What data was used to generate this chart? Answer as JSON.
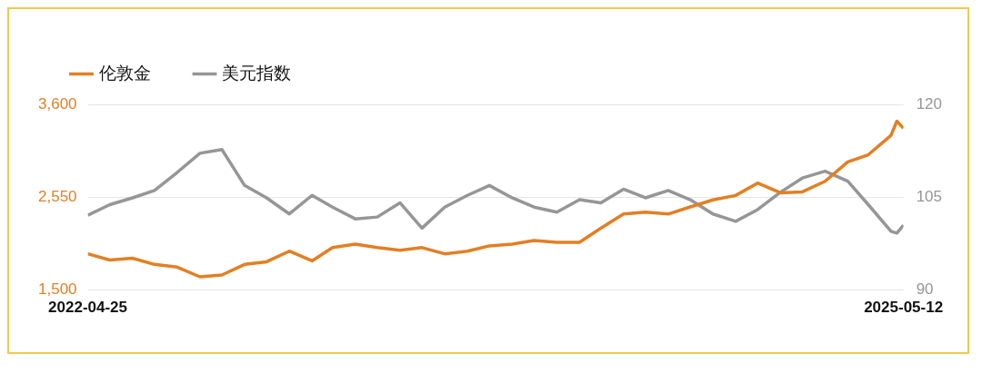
{
  "chart_data": {
    "type": "line",
    "legend": "top left",
    "grid": "y",
    "marker": "none",
    "line_style": "solid",
    "x": [
      "2022-04-25",
      "2022-05-25",
      "2022-06-25",
      "2022-07-25",
      "2022-08-25",
      "2022-09-25",
      "2022-10-25",
      "2022-11-25",
      "2022-12-25",
      "2023-01-25",
      "2023-02-25",
      "2023-03-25",
      "2023-04-25",
      "2023-05-25",
      "2023-06-25",
      "2023-07-25",
      "2023-08-25",
      "2023-09-25",
      "2023-10-25",
      "2023-11-25",
      "2023-12-25",
      "2024-01-25",
      "2024-02-25",
      "2024-03-25",
      "2024-04-25",
      "2024-05-25",
      "2024-06-25",
      "2024-07-25",
      "2024-08-25",
      "2024-09-25",
      "2024-10-25",
      "2024-11-25",
      "2024-12-25",
      "2025-01-25",
      "2025-02-25",
      "2025-03-25",
      "2025-04-25",
      "2025-05-03",
      "2025-05-12"
    ],
    "xlim": [
      "2022-04-25",
      "2025-05-12"
    ],
    "xticks": [
      "2022-04-25",
      "2025-05-12"
    ],
    "ylim": [
      1500,
      3600
    ],
    "yticks": [
      {
        "value": 1500,
        "label": "1,500"
      },
      {
        "value": 2550,
        "label": "2,550"
      },
      {
        "value": 3600,
        "label": "3,600"
      }
    ],
    "y2lim": [
      90,
      120
    ],
    "y2ticks": [
      90,
      105,
      120
    ],
    "series": [
      {
        "name": "伦敦金",
        "color": "#e37f22",
        "values": [
          1910,
          1840,
          1860,
          1790,
          1760,
          1650,
          1670,
          1790,
          1820,
          1940,
          1830,
          1980,
          2020,
          1980,
          1950,
          1980,
          1910,
          1940,
          2000,
          2020,
          2060,
          2040,
          2040,
          2200,
          2360,
          2380,
          2360,
          2440,
          2520,
          2570,
          2710,
          2600,
          2610,
          2730,
          2950,
          3030,
          3250,
          3410,
          3330
        ]
      },
      {
        "name": "美元指数",
        "color": "#969696",
        "axis": "y2",
        "values": [
          102.1,
          103.8,
          104.9,
          106.1,
          109.0,
          112.1,
          112.7,
          106.9,
          104.9,
          102.3,
          105.3,
          103.4,
          101.5,
          101.8,
          104.1,
          100.0,
          103.4,
          105.3,
          106.9,
          104.9,
          103.4,
          102.6,
          104.6,
          104.1,
          106.3,
          104.9,
          106.1,
          104.6,
          102.3,
          101.1,
          103.0,
          105.8,
          108.1,
          109.2,
          107.6,
          103.8,
          99.5,
          99.2,
          100.5
        ]
      }
    ]
  }
}
